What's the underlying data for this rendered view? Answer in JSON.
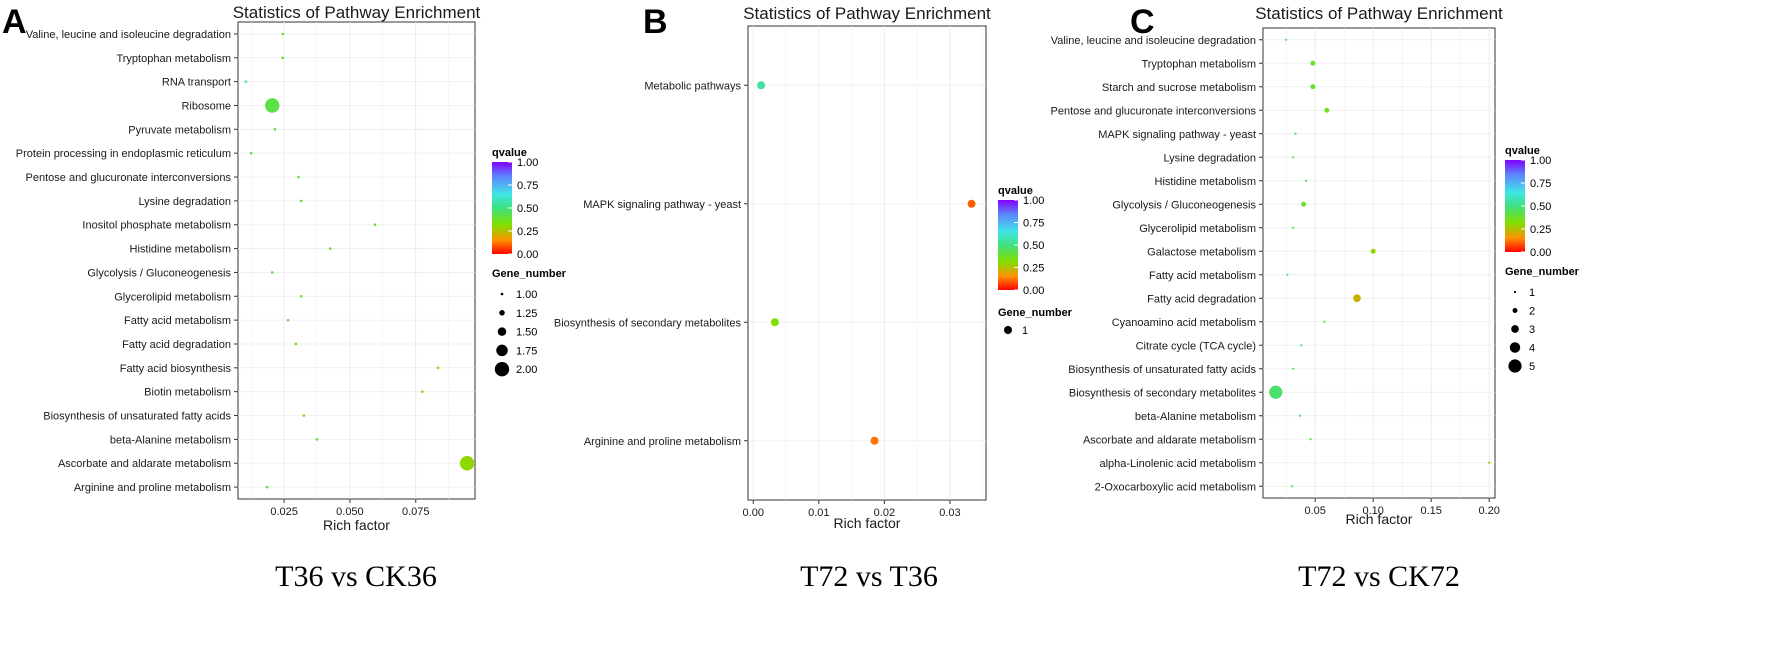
{
  "chart_data": [
    {
      "type": "scatter",
      "panel_label": "A",
      "title": "Statistics of Pathway Enrichment",
      "caption": "T36 vs CK36",
      "xlabel": "Rich factor",
      "xlim": [
        0.0075,
        0.0975
      ],
      "xticks": [
        {
          "value": 0.025,
          "label": "0.025"
        },
        {
          "value": 0.05,
          "label": "0.050"
        },
        {
          "value": 0.075,
          "label": "0.075"
        }
      ],
      "categories": [
        "Valine, leucine and isoleucine degradation",
        "Tryptophan metabolism",
        "RNA transport",
        "Ribosome",
        "Pyruvate metabolism",
        "Protein processing in endoplasmic reticulum",
        "Pentose and glucuronate interconversions",
        "Lysine degradation",
        "Inositol phosphate metabolism",
        "Histidine metabolism",
        "Glycolysis / Gluconeogenesis",
        "Glycerolipid metabolism",
        "Fatty acid metabolism",
        "Fatty acid degradation",
        "Fatty acid biosynthesis",
        "Biotin metabolism",
        "Biosynthesis of unsaturated fatty acids",
        "beta-Alanine metabolism",
        "Ascorbate and aldarate metabolism",
        "Arginine and proline metabolism"
      ],
      "points": [
        {
          "pathway": "Valine, leucine and isoleucine degradation",
          "rich_factor": 0.0245,
          "qvalue": 0.4,
          "gene_number": 1
        },
        {
          "pathway": "Tryptophan metabolism",
          "rich_factor": 0.0245,
          "qvalue": 0.4,
          "gene_number": 1
        },
        {
          "pathway": "RNA transport",
          "rich_factor": 0.0105,
          "qvalue": 0.52,
          "gene_number": 1
        },
        {
          "pathway": "Ribosome",
          "rich_factor": 0.0205,
          "qvalue": 0.42,
          "gene_number": 2
        },
        {
          "pathway": "Pyruvate metabolism",
          "rich_factor": 0.0215,
          "qvalue": 0.4,
          "gene_number": 1
        },
        {
          "pathway": "Protein processing in endoplasmic reticulum",
          "rich_factor": 0.0125,
          "qvalue": 0.46,
          "gene_number": 1
        },
        {
          "pathway": "Pentose and glucuronate interconversions",
          "rich_factor": 0.0305,
          "qvalue": 0.4,
          "gene_number": 1
        },
        {
          "pathway": "Lysine degradation",
          "rich_factor": 0.0315,
          "qvalue": 0.38,
          "gene_number": 1
        },
        {
          "pathway": "Inositol phosphate metabolism",
          "rich_factor": 0.0595,
          "qvalue": 0.33,
          "gene_number": 1
        },
        {
          "pathway": "Histidine metabolism",
          "rich_factor": 0.0425,
          "qvalue": 0.36,
          "gene_number": 1
        },
        {
          "pathway": "Glycolysis / Gluconeogenesis",
          "rich_factor": 0.0205,
          "qvalue": 0.42,
          "gene_number": 1
        },
        {
          "pathway": "Glycerolipid metabolism",
          "rich_factor": 0.0315,
          "qvalue": 0.38,
          "gene_number": 1
        },
        {
          "pathway": "Fatty acid metabolism",
          "rich_factor": 0.0265,
          "qvalue": 0.39,
          "gene_number": 1
        },
        {
          "pathway": "Fatty acid degradation",
          "rich_factor": 0.0295,
          "qvalue": 0.38,
          "gene_number": 1
        },
        {
          "pathway": "Fatty acid biosynthesis",
          "rich_factor": 0.0835,
          "qvalue": 0.3,
          "gene_number": 1
        },
        {
          "pathway": "Biotin metabolism",
          "rich_factor": 0.0775,
          "qvalue": 0.31,
          "gene_number": 1
        },
        {
          "pathway": "Biosynthesis of unsaturated fatty acids",
          "rich_factor": 0.0325,
          "qvalue": 0.37,
          "gene_number": 1
        },
        {
          "pathway": "beta-Alanine metabolism",
          "rich_factor": 0.0375,
          "qvalue": 0.36,
          "gene_number": 1
        },
        {
          "pathway": "Ascorbate and aldarate metabolism",
          "rich_factor": 0.0945,
          "qvalue": 0.3,
          "gene_number": 2
        },
        {
          "pathway": "Arginine and proline metabolism",
          "rich_factor": 0.0185,
          "qvalue": 0.42,
          "gene_number": 1
        }
      ],
      "legend_color": {
        "title": "qvalue",
        "ticks": [
          "1.00",
          "0.75",
          "0.50",
          "0.25",
          "0.00"
        ]
      },
      "legend_size": {
        "title": "Gene_number",
        "entries": [
          {
            "value": 1.0,
            "label": "1.00"
          },
          {
            "value": 1.25,
            "label": "1.25"
          },
          {
            "value": 1.5,
            "label": "1.50"
          },
          {
            "value": 1.75,
            "label": "1.75"
          },
          {
            "value": 2.0,
            "label": "2.00"
          }
        ]
      },
      "size_range": [
        1,
        2
      ]
    },
    {
      "type": "scatter",
      "panel_label": "B",
      "title": "Statistics of Pathway Enrichment",
      "caption": "T72 vs T36",
      "xlabel": "Rich factor",
      "xlim": [
        -0.0008,
        0.0355
      ],
      "xticks": [
        {
          "value": 0.0,
          "label": "0.00"
        },
        {
          "value": 0.01,
          "label": "0.01"
        },
        {
          "value": 0.02,
          "label": "0.02"
        },
        {
          "value": 0.03,
          "label": "0.03"
        }
      ],
      "categories": [
        "Metabolic pathways",
        "MAPK signaling pathway - yeast",
        "Biosynthesis of secondary metabolites",
        "Arginine and proline metabolism"
      ],
      "points": [
        {
          "pathway": "Metabolic pathways",
          "rich_factor": 0.0012,
          "qvalue": 0.55,
          "gene_number": 1
        },
        {
          "pathway": "MAPK signaling pathway - yeast",
          "rich_factor": 0.0333,
          "qvalue": 0.1,
          "gene_number": 1
        },
        {
          "pathway": "Biosynthesis of secondary metabolites",
          "rich_factor": 0.0033,
          "qvalue": 0.32,
          "gene_number": 1
        },
        {
          "pathway": "Arginine and proline metabolism",
          "rich_factor": 0.0185,
          "qvalue": 0.12,
          "gene_number": 1
        }
      ],
      "legend_color": {
        "title": "qvalue",
        "ticks": [
          "1.00",
          "0.75",
          "0.50",
          "0.25",
          "0.00"
        ]
      },
      "legend_size": {
        "title": "Gene_number",
        "entries": [
          {
            "value": 1,
            "label": "1"
          }
        ]
      },
      "size_range": [
        1,
        1
      ]
    },
    {
      "type": "scatter",
      "panel_label": "C",
      "title": "Statistics of Pathway Enrichment",
      "caption": "T72 vs CK72",
      "xlabel": "Rich factor",
      "xlim": [
        0.005,
        0.205
      ],
      "xticks": [
        {
          "value": 0.05,
          "label": "0.05"
        },
        {
          "value": 0.1,
          "label": "0.10"
        },
        {
          "value": 0.15,
          "label": "0.15"
        },
        {
          "value": 0.2,
          "label": "0.20"
        }
      ],
      "categories": [
        "Valine, leucine and isoleucine degradation",
        "Tryptophan metabolism",
        "Starch and sucrose metabolism",
        "Pentose and glucuronate interconversions",
        "MAPK signaling pathway - yeast",
        "Lysine degradation",
        "Histidine metabolism",
        "Glycolysis / Gluconeogenesis",
        "Glycerolipid metabolism",
        "Galactose metabolism",
        "Fatty acid metabolism",
        "Fatty acid degradation",
        "Cyanoamino acid metabolism",
        "Citrate cycle (TCA cycle)",
        "Biosynthesis of unsaturated fatty acids",
        "Biosynthesis of secondary metabolites",
        "beta-Alanine metabolism",
        "Ascorbate and aldarate metabolism",
        "alpha-Linolenic acid metabolism",
        "2-Oxocarboxylic acid metabolism"
      ],
      "points": [
        {
          "pathway": "Valine, leucine and isoleucine degradation",
          "rich_factor": 0.025,
          "qvalue": 0.48,
          "gene_number": 1
        },
        {
          "pathway": "Tryptophan metabolism",
          "rich_factor": 0.048,
          "qvalue": 0.38,
          "gene_number": 2
        },
        {
          "pathway": "Starch and sucrose metabolism",
          "rich_factor": 0.048,
          "qvalue": 0.38,
          "gene_number": 2
        },
        {
          "pathway": "Pentose and glucuronate interconversions",
          "rich_factor": 0.06,
          "qvalue": 0.36,
          "gene_number": 2
        },
        {
          "pathway": "MAPK signaling pathway - yeast",
          "rich_factor": 0.033,
          "qvalue": 0.45,
          "gene_number": 1
        },
        {
          "pathway": "Lysine degradation",
          "rich_factor": 0.031,
          "qvalue": 0.45,
          "gene_number": 1
        },
        {
          "pathway": "Histidine metabolism",
          "rich_factor": 0.042,
          "qvalue": 0.42,
          "gene_number": 1
        },
        {
          "pathway": "Glycolysis / Gluconeogenesis",
          "rich_factor": 0.04,
          "qvalue": 0.38,
          "gene_number": 2
        },
        {
          "pathway": "Glycerolipid metabolism",
          "rich_factor": 0.031,
          "qvalue": 0.45,
          "gene_number": 1
        },
        {
          "pathway": "Galactose metabolism",
          "rich_factor": 0.1,
          "qvalue": 0.3,
          "gene_number": 2
        },
        {
          "pathway": "Fatty acid metabolism",
          "rich_factor": 0.026,
          "qvalue": 0.47,
          "gene_number": 1
        },
        {
          "pathway": "Fatty acid degradation",
          "rich_factor": 0.086,
          "qvalue": 0.22,
          "gene_number": 3
        },
        {
          "pathway": "Cyanoamino acid metabolism",
          "rich_factor": 0.058,
          "qvalue": 0.42,
          "gene_number": 1
        },
        {
          "pathway": "Citrate cycle (TCA cycle)",
          "rich_factor": 0.038,
          "qvalue": 0.5,
          "gene_number": 1
        },
        {
          "pathway": "Biosynthesis of unsaturated fatty acids",
          "rich_factor": 0.031,
          "qvalue": 0.45,
          "gene_number": 1
        },
        {
          "pathway": "Biosynthesis of secondary metabolites",
          "rich_factor": 0.016,
          "qvalue": 0.47,
          "gene_number": 5
        },
        {
          "pathway": "beta-Alanine metabolism",
          "rich_factor": 0.037,
          "qvalue": 0.47,
          "gene_number": 1
        },
        {
          "pathway": "Ascorbate and aldarate metabolism",
          "rich_factor": 0.046,
          "qvalue": 0.42,
          "gene_number": 1
        },
        {
          "pathway": "alpha-Linolenic acid metabolism",
          "rich_factor": 0.2,
          "qvalue": 0.3,
          "gene_number": 1
        },
        {
          "pathway": "2-Oxocarboxylic acid metabolism",
          "rich_factor": 0.03,
          "qvalue": 0.45,
          "gene_number": 1
        }
      ],
      "legend_color": {
        "title": "qvalue",
        "ticks": [
          "1.00",
          "0.75",
          "0.50",
          "0.25",
          "0.00"
        ]
      },
      "legend_size": {
        "title": "Gene_number",
        "entries": [
          {
            "value": 1,
            "label": "1"
          },
          {
            "value": 2,
            "label": "2"
          },
          {
            "value": 3,
            "label": "3"
          },
          {
            "value": 4,
            "label": "4"
          },
          {
            "value": 5,
            "label": "5"
          }
        ]
      },
      "size_range": [
        1,
        5
      ]
    }
  ]
}
